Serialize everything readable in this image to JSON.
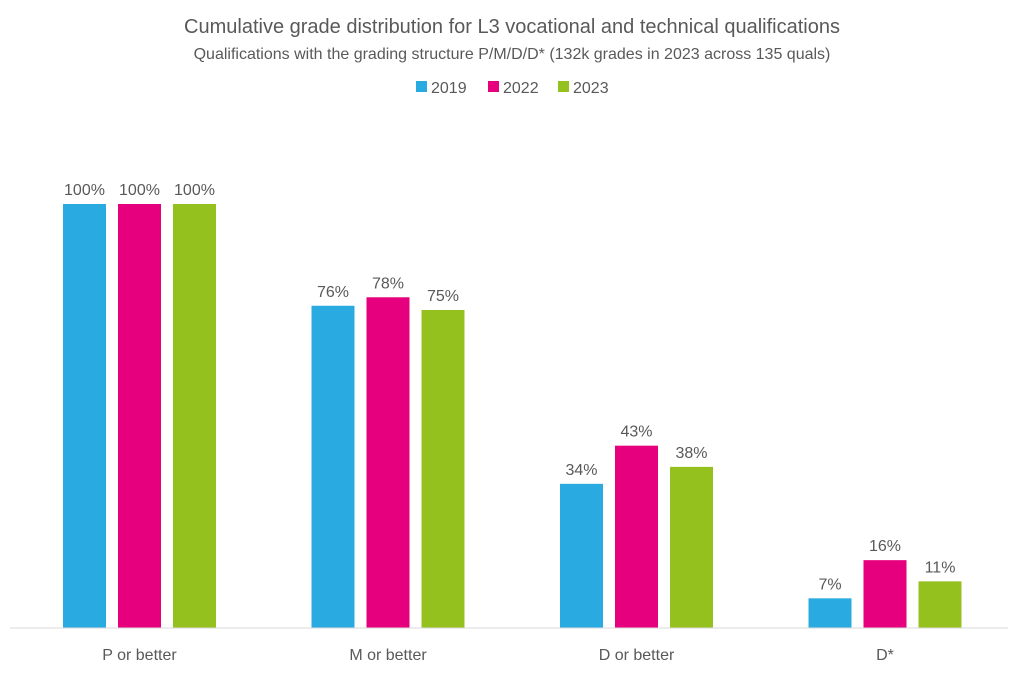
{
  "chart_data": {
    "type": "bar",
    "title": "Cumulative grade distribution for L3 vocational and technical qualifications",
    "subtitle": "Qualifications with the grading structure P/M/D/D* (132k grades in 2023 across 135 quals)",
    "categories": [
      "P or better",
      "M or better",
      "D or better",
      "D*"
    ],
    "series": [
      {
        "name": "2019",
        "color": "#29ABE2",
        "values": [
          100,
          76,
          34,
          7
        ]
      },
      {
        "name": "2022",
        "color": "#E6007E",
        "values": [
          100,
          78,
          43,
          16
        ]
      },
      {
        "name": "2023",
        "color": "#95C11F",
        "values": [
          100,
          75,
          38,
          11
        ]
      }
    ],
    "value_suffix": "%",
    "xlabel": "",
    "ylabel": "",
    "ylim": [
      0,
      100
    ],
    "grid": false,
    "legend": "top-center"
  }
}
